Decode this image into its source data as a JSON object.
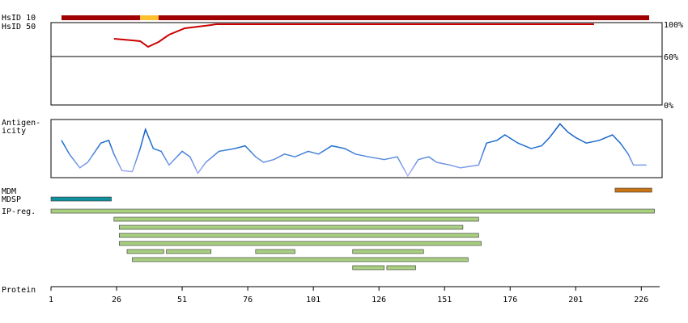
{
  "xaxis": {
    "label": "Protein",
    "xlim": [
      1,
      233
    ],
    "xticks": [
      1,
      26,
      51,
      76,
      101,
      126,
      151,
      176,
      201,
      226
    ]
  },
  "hsid10": {
    "label": "HsID 10",
    "segments": [
      {
        "range": [
          5,
          35
        ],
        "color": "#a00000"
      },
      {
        "range": [
          35,
          42
        ],
        "color": "#ffc030"
      },
      {
        "range": [
          42,
          229
        ],
        "color": "#a00000"
      }
    ]
  },
  "hsid50": {
    "label": "HsID 50",
    "color": "#cc0000",
    "x": [
      25,
      32,
      35,
      38,
      42,
      46,
      52,
      57,
      62,
      64,
      208
    ],
    "values": [
      82,
      80,
      79,
      72,
      78,
      87,
      95,
      97,
      99,
      100,
      100
    ],
    "ylim": [
      0,
      100
    ],
    "yticks": [
      {
        "value": 100,
        "label": "100%"
      },
      {
        "value": 60,
        "label": "60%"
      },
      {
        "value": 0,
        "label": "0%"
      }
    ]
  },
  "antigenicity": {
    "label_lines": [
      "Antigen-",
      "icity"
    ],
    "x": [
      5,
      8,
      12,
      15,
      20,
      23,
      25,
      28,
      32,
      35,
      37,
      40,
      43,
      46,
      51,
      54,
      57,
      60,
      65,
      71,
      75,
      79,
      82,
      86,
      90,
      94,
      99,
      103,
      108,
      113,
      117,
      122,
      128,
      133,
      137,
      141,
      145,
      148,
      153,
      157,
      164,
      167,
      171,
      174,
      179,
      184,
      188,
      191,
      195,
      198,
      201,
      205,
      210,
      215,
      218,
      221,
      223,
      228
    ],
    "values": [
      0.65,
      0.4,
      0.15,
      0.25,
      0.6,
      0.65,
      0.4,
      0.1,
      0.08,
      0.5,
      0.85,
      0.5,
      0.45,
      0.2,
      0.45,
      0.35,
      0.05,
      0.25,
      0.45,
      0.5,
      0.55,
      0.35,
      0.25,
      0.3,
      0.4,
      0.35,
      0.45,
      0.4,
      0.55,
      0.5,
      0.4,
      0.35,
      0.3,
      0.35,
      0.0,
      0.3,
      0.35,
      0.25,
      0.2,
      0.15,
      0.2,
      0.6,
      0.65,
      0.75,
      0.6,
      0.5,
      0.55,
      0.7,
      0.95,
      0.8,
      0.7,
      0.6,
      0.65,
      0.75,
      0.6,
      0.4,
      0.2,
      0.2
    ],
    "ylim": [
      0,
      1
    ]
  },
  "features": [
    {
      "label": "MDM",
      "color": "#c87414",
      "rows": [
        [
          [
            216,
            230
          ]
        ]
      ]
    },
    {
      "label": "MDSP",
      "color": "#10909c",
      "rows": [
        [
          [
            1,
            24
          ]
        ]
      ]
    },
    {
      "label": "IP-reg.",
      "color": "#a8d080",
      "rows": [
        [
          [
            1,
            231
          ]
        ],
        [
          [
            25,
            164
          ]
        ],
        [
          [
            27,
            158
          ]
        ],
        [
          [
            27,
            164
          ]
        ],
        [
          [
            27,
            165
          ]
        ],
        [
          [
            30,
            44
          ],
          [
            45,
            62
          ],
          [
            79,
            94
          ],
          [
            116,
            143
          ]
        ],
        [
          [
            32,
            160
          ]
        ],
        [
          [
            116,
            128
          ],
          [
            129,
            140
          ]
        ]
      ]
    }
  ]
}
